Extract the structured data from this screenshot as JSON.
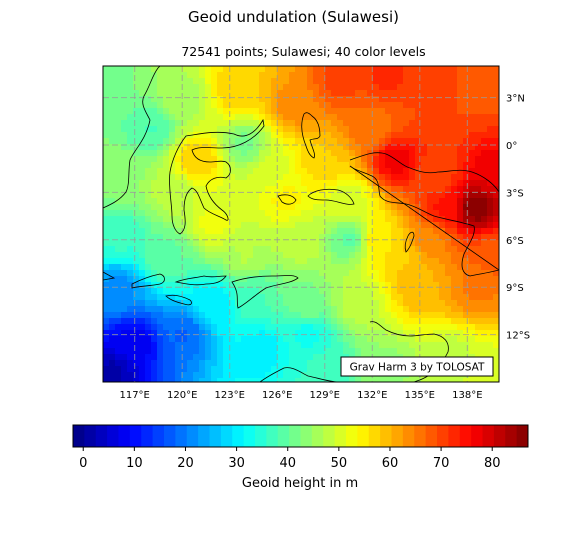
{
  "title": "Geoid undulation (Sulawesi)",
  "subtitle": "72541 points; Sulawesi; 40 color levels",
  "credit": "Grav Harm 3 by TOLOSAT",
  "chart_data": {
    "type": "heatmap",
    "title": "Geoid undulation (Sulawesi)",
    "subtitle": "72541 points; Sulawesi; 40 color levels",
    "lon_range": [
      115,
      140
    ],
    "lat_range": [
      -15,
      5
    ],
    "x_ticks": [
      117,
      120,
      123,
      126,
      129,
      132,
      135,
      138
    ],
    "x_tick_labels": [
      "117°E",
      "120°E",
      "123°E",
      "126°E",
      "129°E",
      "132°E",
      "135°E",
      "138°E"
    ],
    "y_ticks": [
      3,
      0,
      -3,
      -6,
      -9,
      -12
    ],
    "y_tick_labels": [
      "3°N",
      "0°",
      "3°S",
      "6°S",
      "9°S",
      "12°S"
    ],
    "grid": true,
    "color_levels": 40,
    "colorbar": {
      "label": "Geoid height in m",
      "range": [
        -2,
        87
      ],
      "ticks": [
        0,
        10,
        20,
        30,
        40,
        50,
        60,
        70,
        80
      ],
      "tick_labels": [
        "0",
        "10",
        "20",
        "30",
        "40",
        "50",
        "60",
        "70",
        "80"
      ],
      "colormap": "jet"
    },
    "annotation": "Grav Harm 3 by TOLOSAT",
    "field_anchors": [
      {
        "lon": 115.5,
        "lat": -14.5,
        "value": 2
      },
      {
        "lon": 117,
        "lat": -12.5,
        "value": 8
      },
      {
        "lon": 120,
        "lat": -12,
        "value": 18
      },
      {
        "lon": 122,
        "lat": -10,
        "value": 30
      },
      {
        "lon": 116,
        "lat": -9,
        "value": 22
      },
      {
        "lon": 125,
        "lat": -13,
        "value": 30
      },
      {
        "lon": 129,
        "lat": -14,
        "value": 36
      },
      {
        "lon": 133,
        "lat": -14,
        "value": 44
      },
      {
        "lon": 137,
        "lat": -13.5,
        "value": 48
      },
      {
        "lon": 139.5,
        "lat": -14.5,
        "value": 50
      },
      {
        "lon": 116,
        "lat": -6,
        "value": 36
      },
      {
        "lon": 119,
        "lat": -7,
        "value": 40
      },
      {
        "lon": 124,
        "lat": -7,
        "value": 47
      },
      {
        "lon": 128,
        "lat": -10,
        "value": 42
      },
      {
        "lon": 131,
        "lat": -10,
        "value": 48
      },
      {
        "lon": 135,
        "lat": -9,
        "value": 60
      },
      {
        "lon": 138.5,
        "lat": -9,
        "value": 65
      },
      {
        "lon": 139.5,
        "lat": -7,
        "value": 68
      },
      {
        "lon": 116,
        "lat": -2,
        "value": 44
      },
      {
        "lon": 118,
        "lat": 1,
        "value": 38
      },
      {
        "lon": 115.5,
        "lat": 4.5,
        "value": 42
      },
      {
        "lon": 120,
        "lat": 3,
        "value": 46
      },
      {
        "lon": 119.5,
        "lat": -3,
        "value": 48
      },
      {
        "lon": 122,
        "lat": -5,
        "value": 52
      },
      {
        "lon": 121,
        "lat": -1,
        "value": 58
      },
      {
        "lon": 123.5,
        "lat": 3.5,
        "value": 58
      },
      {
        "lon": 124,
        "lat": 0,
        "value": 42
      },
      {
        "lon": 125.5,
        "lat": -1.5,
        "value": 50
      },
      {
        "lon": 127,
        "lat": 2.5,
        "value": 64
      },
      {
        "lon": 126.5,
        "lat": -3.5,
        "value": 54
      },
      {
        "lon": 129,
        "lat": -1,
        "value": 58
      },
      {
        "lon": 127.5,
        "lat": -6,
        "value": 48
      },
      {
        "lon": 130.5,
        "lat": -6,
        "value": 40
      },
      {
        "lon": 132.5,
        "lat": -6,
        "value": 55
      },
      {
        "lon": 134,
        "lat": -7,
        "value": 58
      },
      {
        "lon": 130,
        "lat": 4,
        "value": 70
      },
      {
        "lon": 133,
        "lat": 4.5,
        "value": 72
      },
      {
        "lon": 136,
        "lat": 4,
        "value": 70
      },
      {
        "lon": 139,
        "lat": 4,
        "value": 68
      },
      {
        "lon": 132,
        "lat": 1,
        "value": 66
      },
      {
        "lon": 133.5,
        "lat": -1,
        "value": 77
      },
      {
        "lon": 136,
        "lat": -2,
        "value": 70
      },
      {
        "lon": 138.5,
        "lat": -4,
        "value": 86
      },
      {
        "lon": 136.5,
        "lat": -4,
        "value": 74
      },
      {
        "lon": 139.8,
        "lat": -2,
        "value": 78
      },
      {
        "lon": 135.5,
        "lat": -6,
        "value": 64
      },
      {
        "lon": 128,
        "lat": -12,
        "value": 33
      },
      {
        "lon": 124.5,
        "lat": -9.5,
        "value": 38
      },
      {
        "lon": 130.5,
        "lat": -3.5,
        "value": 50
      }
    ]
  }
}
